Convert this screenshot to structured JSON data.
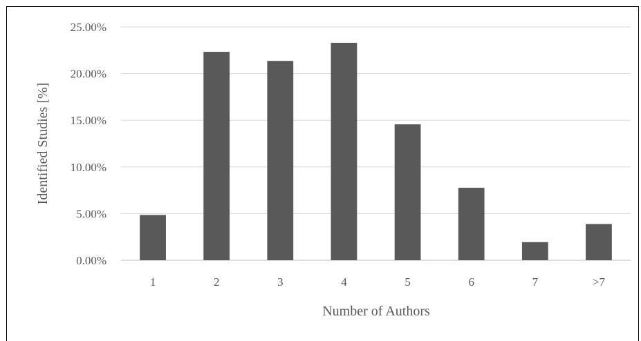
{
  "chart_data": {
    "type": "bar",
    "title": "",
    "xlabel": "Number of Authors",
    "ylabel": "Identified Studies [%]",
    "categories": [
      "1",
      "2",
      "3",
      "4",
      "5",
      "6",
      "7",
      ">7"
    ],
    "values": [
      4.85,
      22.33,
      21.36,
      23.3,
      14.56,
      7.77,
      1.94,
      3.88
    ],
    "ylim": [
      0,
      25
    ],
    "yticks": [
      0,
      5,
      10,
      15,
      20,
      25
    ],
    "ytick_labels": [
      "0.00%",
      "5.00%",
      "10.00%",
      "15.00%",
      "20.00%",
      "25.00%"
    ],
    "grid": true,
    "legend": "none",
    "colors": {
      "bar": "#595959",
      "grid": "#d9d9d9",
      "text": "#595959",
      "frame": "#000000"
    }
  }
}
